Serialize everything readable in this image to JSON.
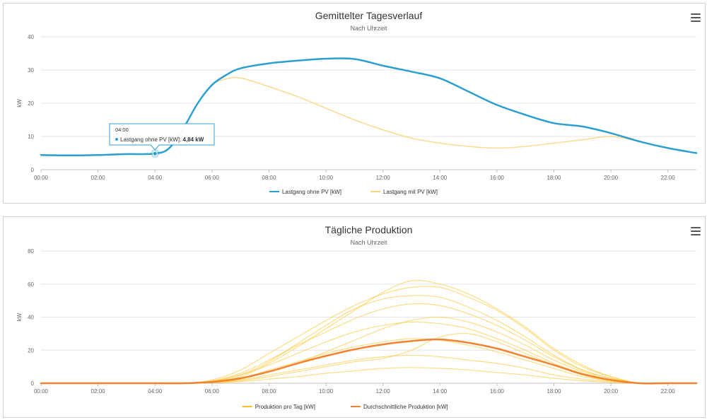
{
  "icons": {
    "menu": "hamburger-menu-icon"
  },
  "colors": {
    "lastgang_ohne": "#2b9fd0",
    "lastgang_mit": "#fdd27a",
    "produktion_tag": "#fbbf1f",
    "durchschnitt": "#f28130",
    "grid": "#e6e6e6",
    "axis": "#c0c0c0"
  },
  "chart_data": [
    {
      "type": "line",
      "title": "Gemittelter Tagesverlauf",
      "subtitle": "Nach Uhrzeit",
      "xlabel": "",
      "ylabel": "kW",
      "ylim": [
        0,
        40
      ],
      "yticks": [
        "0",
        "10",
        "20",
        "30",
        "40"
      ],
      "xticks": [
        "00:00",
        "02:00",
        "04:00",
        "06:00",
        "08:00",
        "10:00",
        "12:00",
        "14:00",
        "16:00",
        "18:00",
        "20:00",
        "22:00"
      ],
      "xlim": [
        0,
        23
      ],
      "grid": true,
      "legend_position": "bottom",
      "x": [
        0,
        1,
        2,
        3,
        4,
        4.5,
        5,
        5.5,
        6,
        6.5,
        7,
        8,
        9,
        10,
        11,
        12,
        13,
        14,
        15,
        16,
        17,
        18,
        19,
        20,
        21,
        22,
        23
      ],
      "series": [
        {
          "name": "Lastgang ohne PV [kW]",
          "values": [
            4.4,
            4.3,
            4.4,
            4.7,
            4.84,
            6.5,
            12.5,
            20.0,
            25.5,
            28.5,
            30.5,
            32.0,
            32.8,
            33.4,
            33.3,
            31.3,
            29.5,
            27.5,
            23.5,
            19.5,
            16.5,
            14.0,
            13.0,
            11.0,
            8.5,
            6.5,
            5.0
          ]
        },
        {
          "name": "Lastgang mit PV [kW]",
          "values": [
            4.4,
            4.3,
            4.4,
            4.7,
            4.84,
            6.5,
            12.5,
            20.0,
            25.5,
            27.3,
            27.6,
            25.0,
            22.0,
            18.5,
            15.0,
            12.0,
            9.5,
            8.0,
            7.0,
            6.5,
            7.0,
            8.0,
            9.0,
            10.0,
            8.5,
            6.5,
            5.0
          ]
        }
      ],
      "tooltip": {
        "time": "04:00",
        "series_label": "Lastgang ohne PV [kW]:",
        "value": "4,84 kW",
        "x": 4,
        "y": 4.84
      }
    },
    {
      "type": "line",
      "title": "Tägliche Produktion",
      "subtitle": "Nach Uhrzeit",
      "xlabel": "",
      "ylabel": "kW",
      "ylim": [
        0,
        80
      ],
      "yticks": [
        "0",
        "20",
        "40",
        "60",
        "80"
      ],
      "xticks": [
        "00:00",
        "02:00",
        "04:00",
        "06:00",
        "08:00",
        "10:00",
        "12:00",
        "14:00",
        "16:00",
        "18:00",
        "20:00",
        "22:00"
      ],
      "xlim": [
        0,
        23
      ],
      "grid": true,
      "legend_position": "bottom",
      "x": [
        0,
        1,
        2,
        3,
        4,
        5,
        6,
        7,
        8,
        9,
        10,
        11,
        12,
        13,
        14,
        15,
        16,
        17,
        18,
        19,
        20,
        21,
        22,
        23
      ],
      "series": [
        {
          "name": "Produktion pro Tag [kW]",
          "values": [
            0,
            0,
            0,
            0,
            0,
            0,
            2,
            8,
            18,
            28,
            38,
            47,
            54,
            58,
            58,
            52,
            44,
            33,
            20,
            10,
            4,
            0,
            0,
            0
          ]
        },
        {
          "name": "",
          "values": [
            0,
            0,
            0,
            0,
            0,
            0,
            1.5,
            6,
            14,
            23,
            31,
            39,
            45,
            48,
            47,
            42,
            35,
            26,
            16,
            8,
            3,
            0,
            0,
            0
          ]
        },
        {
          "name": "",
          "values": [
            0,
            0,
            0,
            0,
            0,
            0,
            1.2,
            5,
            11,
            18,
            25,
            31,
            35,
            37,
            36,
            33,
            27,
            20,
            12,
            6,
            2,
            0,
            0,
            0
          ]
        },
        {
          "name": "",
          "values": [
            0,
            0,
            0,
            0,
            0,
            0,
            0.8,
            3,
            8,
            13,
            18,
            22,
            25,
            27,
            26,
            23,
            19,
            14,
            9,
            4,
            1.5,
            0,
            0,
            0
          ]
        },
        {
          "name": "",
          "values": [
            0,
            0,
            0,
            0,
            0,
            0,
            0.5,
            2,
            5,
            8,
            11,
            14,
            16,
            17,
            16,
            14,
            12,
            9,
            5,
            2.5,
            1,
            0,
            0,
            0
          ]
        },
        {
          "name": "",
          "values": [
            0,
            0,
            0,
            0,
            0,
            0,
            0.3,
            1,
            2.5,
            4,
            6,
            7.5,
            9,
            9.5,
            9,
            8,
            6.5,
            5,
            3,
            1.5,
            0.5,
            0,
            0,
            0
          ]
        },
        {
          "name": "",
          "values": [
            0,
            0,
            0,
            0,
            0,
            0,
            1,
            4,
            12,
            22,
            33,
            44,
            55,
            62,
            60,
            54,
            45,
            34,
            21,
            11,
            4,
            0,
            0,
            0
          ]
        },
        {
          "name": "",
          "values": [
            0,
            0,
            0,
            0,
            0,
            0,
            1,
            5,
            13,
            24,
            35,
            45,
            51,
            53,
            52,
            46,
            38,
            28,
            17,
            8,
            3,
            0,
            0,
            0
          ]
        },
        {
          "name": "",
          "values": [
            0,
            0,
            0,
            0,
            0,
            0,
            0.6,
            2.5,
            7,
            12,
            19,
            26,
            33,
            38,
            40,
            37,
            31,
            23,
            14,
            7,
            2,
            0,
            0,
            0
          ]
        },
        {
          "name": "",
          "values": [
            0,
            0,
            0,
            0,
            0,
            0,
            0.4,
            1.5,
            4,
            7,
            10,
            13,
            15,
            20,
            28,
            30,
            25,
            18,
            11,
            5,
            1.5,
            0,
            0,
            0
          ]
        },
        {
          "name": "Durchschnittliche Produktion [kW]",
          "values": [
            0,
            0,
            0,
            0,
            0,
            0,
            0.8,
            3,
            7,
            12,
            16.5,
            20.5,
            23.5,
            25.5,
            26.5,
            24.5,
            21,
            16,
            11,
            5.5,
            2,
            0,
            0,
            0
          ]
        }
      ]
    }
  ]
}
